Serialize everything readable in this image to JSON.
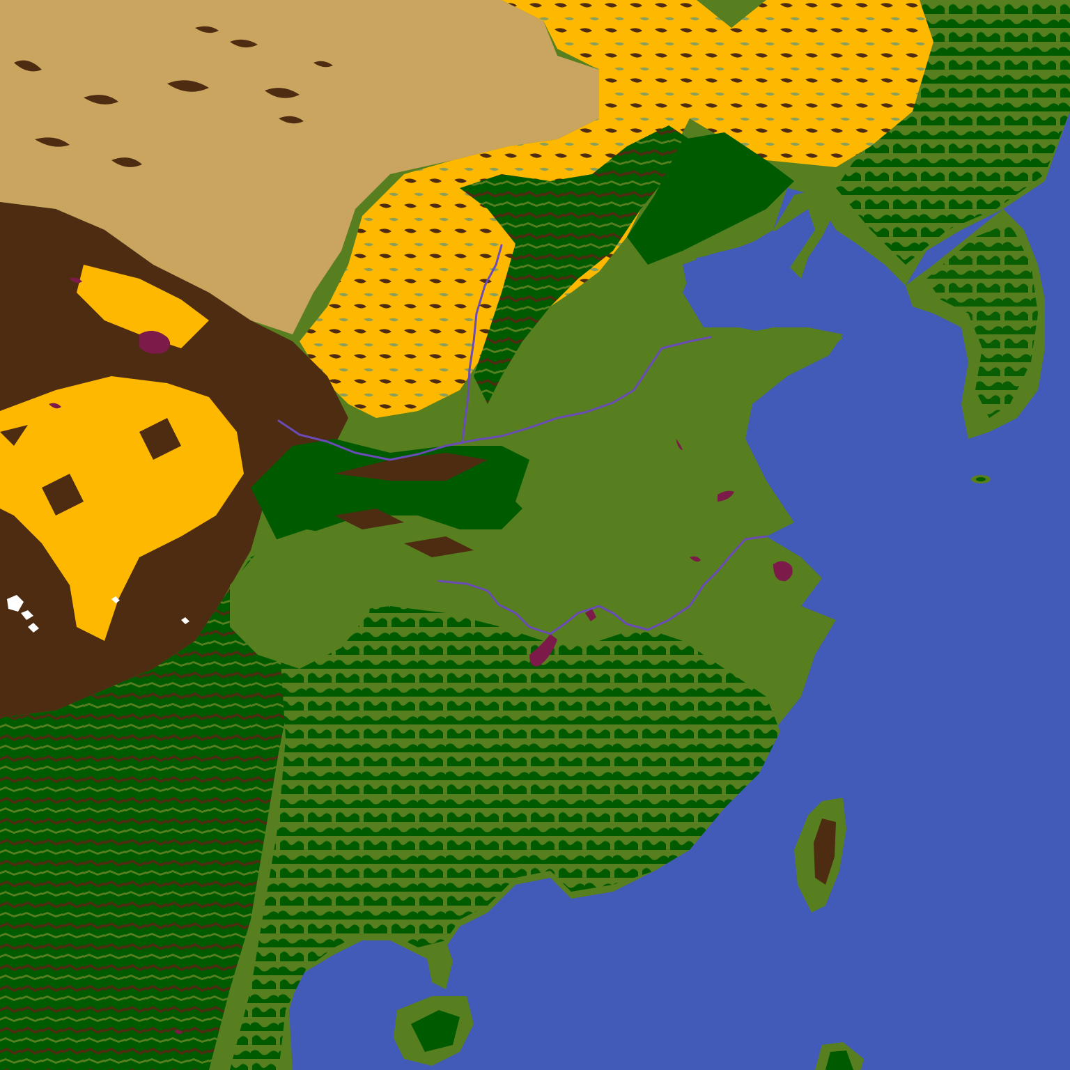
{
  "map": {
    "type": "terrain-classification",
    "region": "East Asia",
    "colors": {
      "ocean": "#435bb8",
      "desert": "#c9a560",
      "steppe": "#ffb800",
      "grassland": "#577e1f",
      "forest": "#005a00",
      "mountain": "#4e2c11",
      "snow": "#ffffff",
      "lake": "#7c1a4a",
      "river": "#6a4bb8"
    },
    "rivers": [
      "yellow-river",
      "yangtze-river",
      "fen-river"
    ],
    "lakes": [
      "qinghai-lake",
      "dongting-lake",
      "poyang-lake",
      "taihu-lake",
      "hongze-lake"
    ]
  }
}
